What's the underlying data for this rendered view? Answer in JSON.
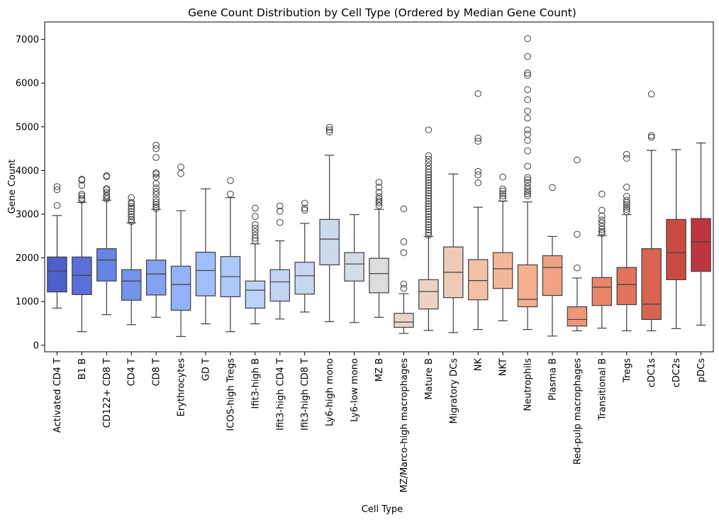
{
  "chart_data": {
    "type": "box",
    "title": "Gene Count Distribution by Cell Type (Ordered by Median Gene Count)",
    "xlabel": "Cell Type",
    "ylabel": "Gene Count",
    "ylim": [
      -150,
      7400
    ],
    "yticks": [
      0,
      1000,
      2000,
      3000,
      4000,
      5000,
      6000,
      7000
    ],
    "grid": false,
    "legend": "none",
    "categories": [
      "Activated CD4 T",
      "B1 B",
      "CD122+ CD8 T",
      "CD4 T",
      "CD8 T",
      "Erythrocytes",
      "GD T",
      "ICOS-high Tregs",
      "Ifit3-high B",
      "Ifit3-high CD4 T",
      "Ifit3-high CD8 T",
      "Ly6-high mono",
      "Ly6-low mono",
      "MZ B",
      "MZ/Marco-high macrophages",
      "Mature B",
      "Migratory DCs",
      "NK",
      "NKT",
      "Neutrophils",
      "Plasma B",
      "Red-pulp macrophages",
      "Transitional B",
      "Tregs",
      "cDC1s",
      "cDC2s",
      "pDCs"
    ],
    "colors": [
      "#4e5fcb",
      "#5a6fd8",
      "#6684e3",
      "#7593ea",
      "#84a2f0",
      "#93b2f7",
      "#9fbdf8",
      "#adc9f9",
      "#bcd3f7",
      "#c2d4f3",
      "#c7d6f0",
      "#cdd9ec",
      "#d5dbe5",
      "#dcdddd",
      "#e9d5cb",
      "#ecd2c4",
      "#efcab7",
      "#f1c0a5",
      "#f2b79a",
      "#f3af8e",
      "#f1a284",
      "#ee9677",
      "#e9866a",
      "#e2745d",
      "#d96451",
      "#cb4b42",
      "#bf353f"
    ],
    "boxes": [
      {
        "q1": 1220,
        "median": 1700,
        "q3": 2020,
        "whisker_low": 850,
        "whisker_high": 2970,
        "outliers": [
          3200,
          3560,
          3630
        ]
      },
      {
        "q1": 1160,
        "median": 1600,
        "q3": 2020,
        "whisker_low": 310,
        "whisker_high": 3270,
        "outliers": [
          3320,
          3360,
          3420,
          3460,
          3660,
          3780,
          3800
        ]
      },
      {
        "q1": 1470,
        "median": 1950,
        "q3": 2210,
        "whisker_low": 700,
        "whisker_high": 3320,
        "outliers": [
          3350,
          3400,
          3430,
          3500,
          3560,
          3590,
          3860,
          3880
        ]
      },
      {
        "q1": 1030,
        "median": 1470,
        "q3": 1730,
        "whisker_low": 470,
        "whisker_high": 2800,
        "outliers": [
          2830,
          2880,
          2940,
          3000,
          3060,
          3120,
          3180,
          3240,
          3270,
          3380
        ]
      },
      {
        "q1": 1150,
        "median": 1630,
        "q3": 1950,
        "whisker_low": 640,
        "whisker_high": 3110,
        "outliers": [
          3130,
          3170,
          3220,
          3280,
          3350,
          3450,
          3520,
          3600,
          3700,
          3850,
          3920,
          3950,
          4300,
          4500,
          4580
        ]
      },
      {
        "q1": 800,
        "median": 1390,
        "q3": 1810,
        "whisker_low": 200,
        "whisker_high": 3080,
        "outliers": [
          3930,
          4080
        ]
      },
      {
        "q1": 1130,
        "median": 1710,
        "q3": 2130,
        "whisker_low": 490,
        "whisker_high": 3580,
        "outliers": []
      },
      {
        "q1": 1110,
        "median": 1570,
        "q3": 2030,
        "whisker_low": 310,
        "whisker_high": 3380,
        "outliers": [
          3460,
          3770
        ]
      },
      {
        "q1": 850,
        "median": 1260,
        "q3": 1470,
        "whisker_low": 490,
        "whisker_high": 2320,
        "outliers": [
          2390,
          2450,
          2520,
          2600,
          2680,
          2760,
          2950,
          3140
        ]
      },
      {
        "q1": 1010,
        "median": 1450,
        "q3": 1730,
        "whisker_low": 600,
        "whisker_high": 2390,
        "outliers": [
          2810,
          3070,
          3190
        ]
      },
      {
        "q1": 1170,
        "median": 1590,
        "q3": 1900,
        "whisker_low": 760,
        "whisker_high": 2790,
        "outliers": [
          3090,
          3140,
          3250
        ]
      },
      {
        "q1": 1840,
        "median": 2430,
        "q3": 2880,
        "whisker_low": 540,
        "whisker_high": 4350,
        "outliers": [
          4880,
          4930,
          4990
        ]
      },
      {
        "q1": 1470,
        "median": 1860,
        "q3": 2120,
        "whisker_low": 520,
        "whisker_high": 2990,
        "outliers": []
      },
      {
        "q1": 1200,
        "median": 1640,
        "q3": 1990,
        "whisker_low": 640,
        "whisker_high": 3110,
        "outliers": [
          3200,
          3260,
          3300,
          3350,
          3400,
          3500,
          3620,
          3730
        ]
      },
      {
        "q1": 410,
        "median": 530,
        "q3": 730,
        "whisker_low": 270,
        "whisker_high": 1180,
        "outliers": [
          1300,
          1400,
          2120,
          2370,
          3120
        ]
      },
      {
        "q1": 830,
        "median": 1230,
        "q3": 1500,
        "whisker_low": 340,
        "whisker_high": 2490,
        "outliers": [
          2520,
          2580,
          2640,
          2700,
          2760,
          2820,
          2880,
          2940,
          3000,
          3060,
          3120,
          3180,
          3240,
          3300,
          3360,
          3420,
          3480,
          3540,
          3600,
          3660,
          3720,
          3780,
          3840,
          3900,
          3960,
          4030,
          4100,
          4180,
          4260,
          4340,
          4930
        ]
      },
      {
        "q1": 1090,
        "median": 1670,
        "q3": 2250,
        "whisker_low": 290,
        "whisker_high": 3920,
        "outliers": []
      },
      {
        "q1": 1040,
        "median": 1480,
        "q3": 1960,
        "whisker_low": 360,
        "whisker_high": 3160,
        "outliers": [
          3720,
          3900,
          3980,
          4670,
          4740,
          5760
        ]
      },
      {
        "q1": 1300,
        "median": 1750,
        "q3": 2120,
        "whisker_low": 560,
        "whisker_high": 3300,
        "outliers": [
          3360,
          3420,
          3470,
          3530,
          3580,
          3850
        ]
      },
      {
        "q1": 880,
        "median": 1050,
        "q3": 1840,
        "whisker_low": 360,
        "whisker_high": 3280,
        "outliers": [
          3420,
          3470,
          3520,
          3570,
          3630,
          3720,
          3790,
          3840,
          4100,
          4450,
          4690,
          4830,
          4930,
          5200,
          5360,
          5620,
          5850,
          6180,
          6230,
          6610,
          7020
        ]
      },
      {
        "q1": 1140,
        "median": 1780,
        "q3": 2050,
        "whisker_low": 210,
        "whisker_high": 2490,
        "outliers": [
          3610
        ]
      },
      {
        "q1": 440,
        "median": 590,
        "q3": 880,
        "whisker_low": 330,
        "whisker_high": 1540,
        "outliers": [
          1770,
          2540,
          4240
        ]
      },
      {
        "q1": 910,
        "median": 1330,
        "q3": 1550,
        "whisker_low": 390,
        "whisker_high": 2510,
        "outliers": [
          2560,
          2600,
          2650,
          2720,
          2800,
          2870,
          2960,
          3090,
          3460
        ]
      },
      {
        "q1": 930,
        "median": 1390,
        "q3": 1780,
        "whisker_low": 330,
        "whisker_high": 2990,
        "outliers": [
          3060,
          3110,
          3160,
          3220,
          3270,
          3320,
          3410,
          3620,
          4280,
          4370
        ]
      },
      {
        "q1": 590,
        "median": 940,
        "q3": 2210,
        "whisker_low": 330,
        "whisker_high": 4460,
        "outliers": [
          4760,
          4800,
          5750
        ]
      },
      {
        "q1": 1500,
        "median": 2120,
        "q3": 2880,
        "whisker_low": 380,
        "whisker_high": 4480,
        "outliers": []
      },
      {
        "q1": 1690,
        "median": 2370,
        "q3": 2900,
        "whisker_low": 460,
        "whisker_high": 4630,
        "outliers": []
      }
    ]
  }
}
